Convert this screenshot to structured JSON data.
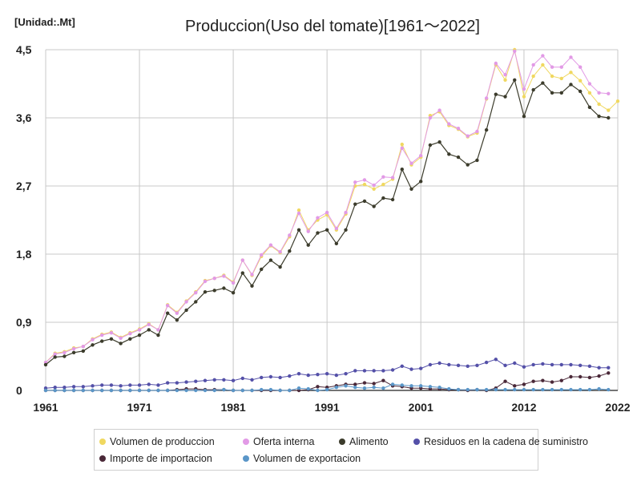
{
  "chart_data": {
    "type": "line",
    "title": "Produccion(Uso del tomate)[1961～2022]",
    "unit_label": "[Unidad:.Mt]",
    "xlim": [
      1961,
      2022
    ],
    "ylim": [
      0,
      4.5
    ],
    "y_ticks": [
      0,
      0.9,
      1.8,
      2.7,
      3.6,
      4.5
    ],
    "y_tick_labels": [
      "0",
      "0,9",
      "1,8",
      "2,7",
      "3,6",
      "4,5"
    ],
    "x_ticks": [
      1961,
      1971,
      1981,
      1991,
      2001,
      2012,
      2022
    ],
    "x_tick_labels": [
      "1961",
      "1971",
      "1981",
      "1991",
      "2001",
      "2012",
      "2022"
    ],
    "grid": true,
    "legend_position": "bottom",
    "x": [
      1961,
      1962,
      1963,
      1964,
      1965,
      1966,
      1967,
      1968,
      1969,
      1970,
      1971,
      1972,
      1973,
      1974,
      1975,
      1976,
      1977,
      1978,
      1979,
      1980,
      1981,
      1982,
      1983,
      1984,
      1985,
      1986,
      1987,
      1988,
      1989,
      1990,
      1991,
      1992,
      1993,
      1994,
      1995,
      1996,
      1997,
      1998,
      1999,
      2000,
      2001,
      2002,
      2003,
      2004,
      2005,
      2006,
      2007,
      2008,
      2009,
      2010,
      2011,
      2012,
      2013,
      2014,
      2015,
      2016,
      2017,
      2018,
      2019,
      2020,
      2021,
      2022
    ],
    "series": [
      {
        "name": "Volumen de produccion",
        "color": "#f0d860",
        "values": [
          0.37,
          0.49,
          0.51,
          0.56,
          0.58,
          0.68,
          0.74,
          0.77,
          0.7,
          0.76,
          0.81,
          0.88,
          0.8,
          1.13,
          1.03,
          1.18,
          1.3,
          1.45,
          1.48,
          1.52,
          1.43,
          1.72,
          1.52,
          1.77,
          1.91,
          1.82,
          2.03,
          2.38,
          2.12,
          2.25,
          2.32,
          2.12,
          2.33,
          2.7,
          2.72,
          2.66,
          2.72,
          2.79,
          3.25,
          2.98,
          3.08,
          3.63,
          3.68,
          3.5,
          3.45,
          3.35,
          3.4,
          3.85,
          4.3,
          4.1,
          4.5,
          3.88,
          4.15,
          4.3,
          4.15,
          4.12,
          4.2,
          4.09,
          3.93,
          3.78,
          3.7,
          3.82
        ]
      },
      {
        "name": "Oferta interna",
        "color": "#e29ae6",
        "values": [
          0.37,
          0.48,
          0.5,
          0.55,
          0.58,
          0.67,
          0.73,
          0.76,
          0.69,
          0.75,
          0.8,
          0.87,
          0.8,
          1.12,
          1.02,
          1.17,
          1.29,
          1.44,
          1.48,
          1.51,
          1.42,
          1.72,
          1.53,
          1.79,
          1.92,
          1.83,
          2.05,
          2.34,
          2.1,
          2.28,
          2.35,
          2.14,
          2.35,
          2.75,
          2.78,
          2.71,
          2.82,
          2.81,
          3.2,
          3.0,
          3.1,
          3.6,
          3.7,
          3.52,
          3.46,
          3.36,
          3.42,
          3.86,
          4.32,
          4.17,
          4.48,
          3.98,
          4.3,
          4.42,
          4.27,
          4.27,
          4.4,
          4.27,
          4.05,
          3.93,
          3.92,
          null
        ]
      },
      {
        "name": "Alimento",
        "color": "#3c3c2c",
        "values": [
          0.34,
          0.44,
          0.45,
          0.5,
          0.52,
          0.6,
          0.65,
          0.68,
          0.62,
          0.68,
          0.73,
          0.8,
          0.73,
          1.02,
          0.93,
          1.06,
          1.17,
          1.3,
          1.32,
          1.35,
          1.29,
          1.55,
          1.38,
          1.6,
          1.72,
          1.63,
          1.84,
          2.12,
          1.92,
          2.08,
          2.12,
          1.94,
          2.12,
          2.46,
          2.5,
          2.43,
          2.54,
          2.52,
          2.92,
          2.66,
          2.76,
          3.24,
          3.28,
          3.12,
          3.08,
          2.98,
          3.04,
          3.44,
          3.91,
          3.88,
          4.1,
          3.62,
          3.97,
          4.06,
          3.93,
          3.93,
          4.04,
          3.95,
          3.74,
          3.62,
          3.6,
          null
        ]
      },
      {
        "name": "Residuos en la cadena de suministro",
        "color": "#5450a8",
        "values": [
          0.03,
          0.04,
          0.04,
          0.05,
          0.05,
          0.06,
          0.07,
          0.07,
          0.06,
          0.07,
          0.07,
          0.08,
          0.07,
          0.1,
          0.1,
          0.11,
          0.12,
          0.13,
          0.14,
          0.14,
          0.13,
          0.16,
          0.14,
          0.17,
          0.18,
          0.17,
          0.19,
          0.22,
          0.2,
          0.21,
          0.22,
          0.2,
          0.22,
          0.26,
          0.26,
          0.26,
          0.26,
          0.27,
          0.32,
          0.28,
          0.29,
          0.34,
          0.36,
          0.34,
          0.33,
          0.32,
          0.33,
          0.37,
          0.41,
          0.33,
          0.36,
          0.31,
          0.34,
          0.35,
          0.34,
          0.34,
          0.34,
          0.33,
          0.32,
          0.3,
          0.3,
          null
        ]
      },
      {
        "name": "Importe de importacion",
        "color": "#4a2838",
        "values": [
          0.0,
          0.0,
          0.0,
          0.0,
          0.0,
          0.0,
          0.0,
          0.0,
          0.0,
          0.0,
          0.0,
          0.0,
          0.0,
          0.0,
          0.01,
          0.02,
          0.02,
          0.01,
          0.01,
          0.01,
          0.0,
          0.0,
          0.0,
          0.0,
          0.0,
          0.0,
          0.0,
          0.0,
          0.01,
          0.05,
          0.04,
          0.06,
          0.08,
          0.08,
          0.1,
          0.09,
          0.13,
          0.06,
          0.05,
          0.03,
          0.03,
          0.02,
          0.02,
          0.01,
          0.01,
          0.0,
          0.01,
          0.0,
          0.03,
          0.12,
          0.06,
          0.08,
          0.12,
          0.13,
          0.11,
          0.13,
          0.18,
          0.18,
          0.17,
          0.19,
          0.23,
          null
        ]
      },
      {
        "name": "Volumen de exportacion",
        "color": "#5a96c8",
        "values": [
          0.0,
          0.0,
          0.0,
          0.0,
          0.0,
          0.0,
          0.0,
          0.0,
          0.0,
          0.0,
          0.0,
          0.0,
          0.0,
          0.0,
          0.0,
          0.0,
          0.0,
          0.0,
          0.0,
          0.01,
          0.0,
          0.0,
          0.0,
          0.01,
          0.01,
          0.0,
          0.0,
          0.03,
          0.02,
          0.0,
          0.01,
          0.04,
          0.06,
          0.04,
          0.03,
          0.04,
          0.03,
          0.08,
          0.07,
          0.06,
          0.06,
          0.05,
          0.04,
          0.02,
          0.01,
          0.01,
          0.01,
          0.01,
          0.01,
          0.01,
          0.01,
          0.01,
          0.01,
          0.01,
          0.01,
          0.01,
          0.01,
          0.01,
          0.01,
          0.02,
          0.01,
          null
        ]
      }
    ]
  }
}
